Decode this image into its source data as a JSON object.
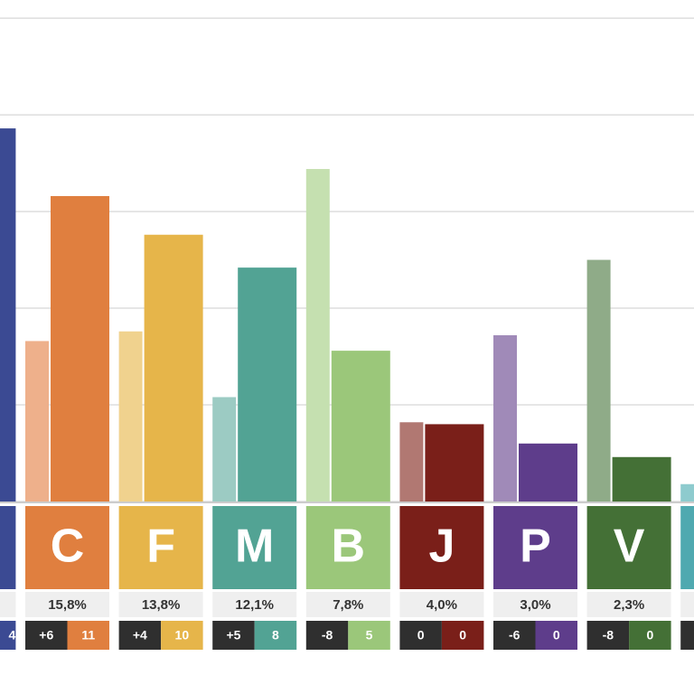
{
  "chart_data": {
    "type": "bar",
    "categories": [
      null,
      "C",
      "F",
      "M",
      "B",
      "J",
      "P",
      "V",
      null
    ],
    "series": [
      {
        "values": [
          null,
          8.3,
          8.8,
          5.4,
          17.2,
          4.1,
          8.6,
          12.5,
          0.9
        ],
        "colors": [
          "#8b94c4",
          "#eeb08b",
          "#f0d28e",
          "#9ccbc3",
          "#c5e0b0",
          "#b17872",
          "#a08ab8",
          "#8fab88",
          "#8ecbce"
        ]
      },
      {
        "values": [
          19.3,
          15.8,
          13.8,
          12.1,
          7.8,
          4.0,
          3.0,
          2.3,
          null
        ],
        "value_labels": [
          null,
          "15,8%",
          "13,8%",
          "12,1%",
          "7,8%",
          "4,0%",
          "3,0%",
          "2,3%",
          null
        ],
        "colors": [
          "#3b4a93",
          "#e07f3f",
          "#e6b54a",
          "#52a394",
          "#9bc77a",
          "#7a1f19",
          "#5e3d8b",
          "#447036",
          "#4fa9b0"
        ]
      }
    ],
    "seats": {
      "values": [
        4,
        11,
        10,
        8,
        5,
        0,
        0,
        0,
        null
      ]
    },
    "seat_changes": {
      "values": [
        null,
        6,
        4,
        5,
        -8,
        0,
        -6,
        -8,
        null
      ],
      "value_labels": [
        null,
        "+6",
        "+4",
        "+5",
        "-8",
        "0",
        "-6",
        "-8",
        null
      ]
    },
    "ylim": [
      0,
      25.1
    ],
    "yticks": [
      0,
      5,
      10,
      15,
      20,
      25
    ],
    "grid": true
  }
}
